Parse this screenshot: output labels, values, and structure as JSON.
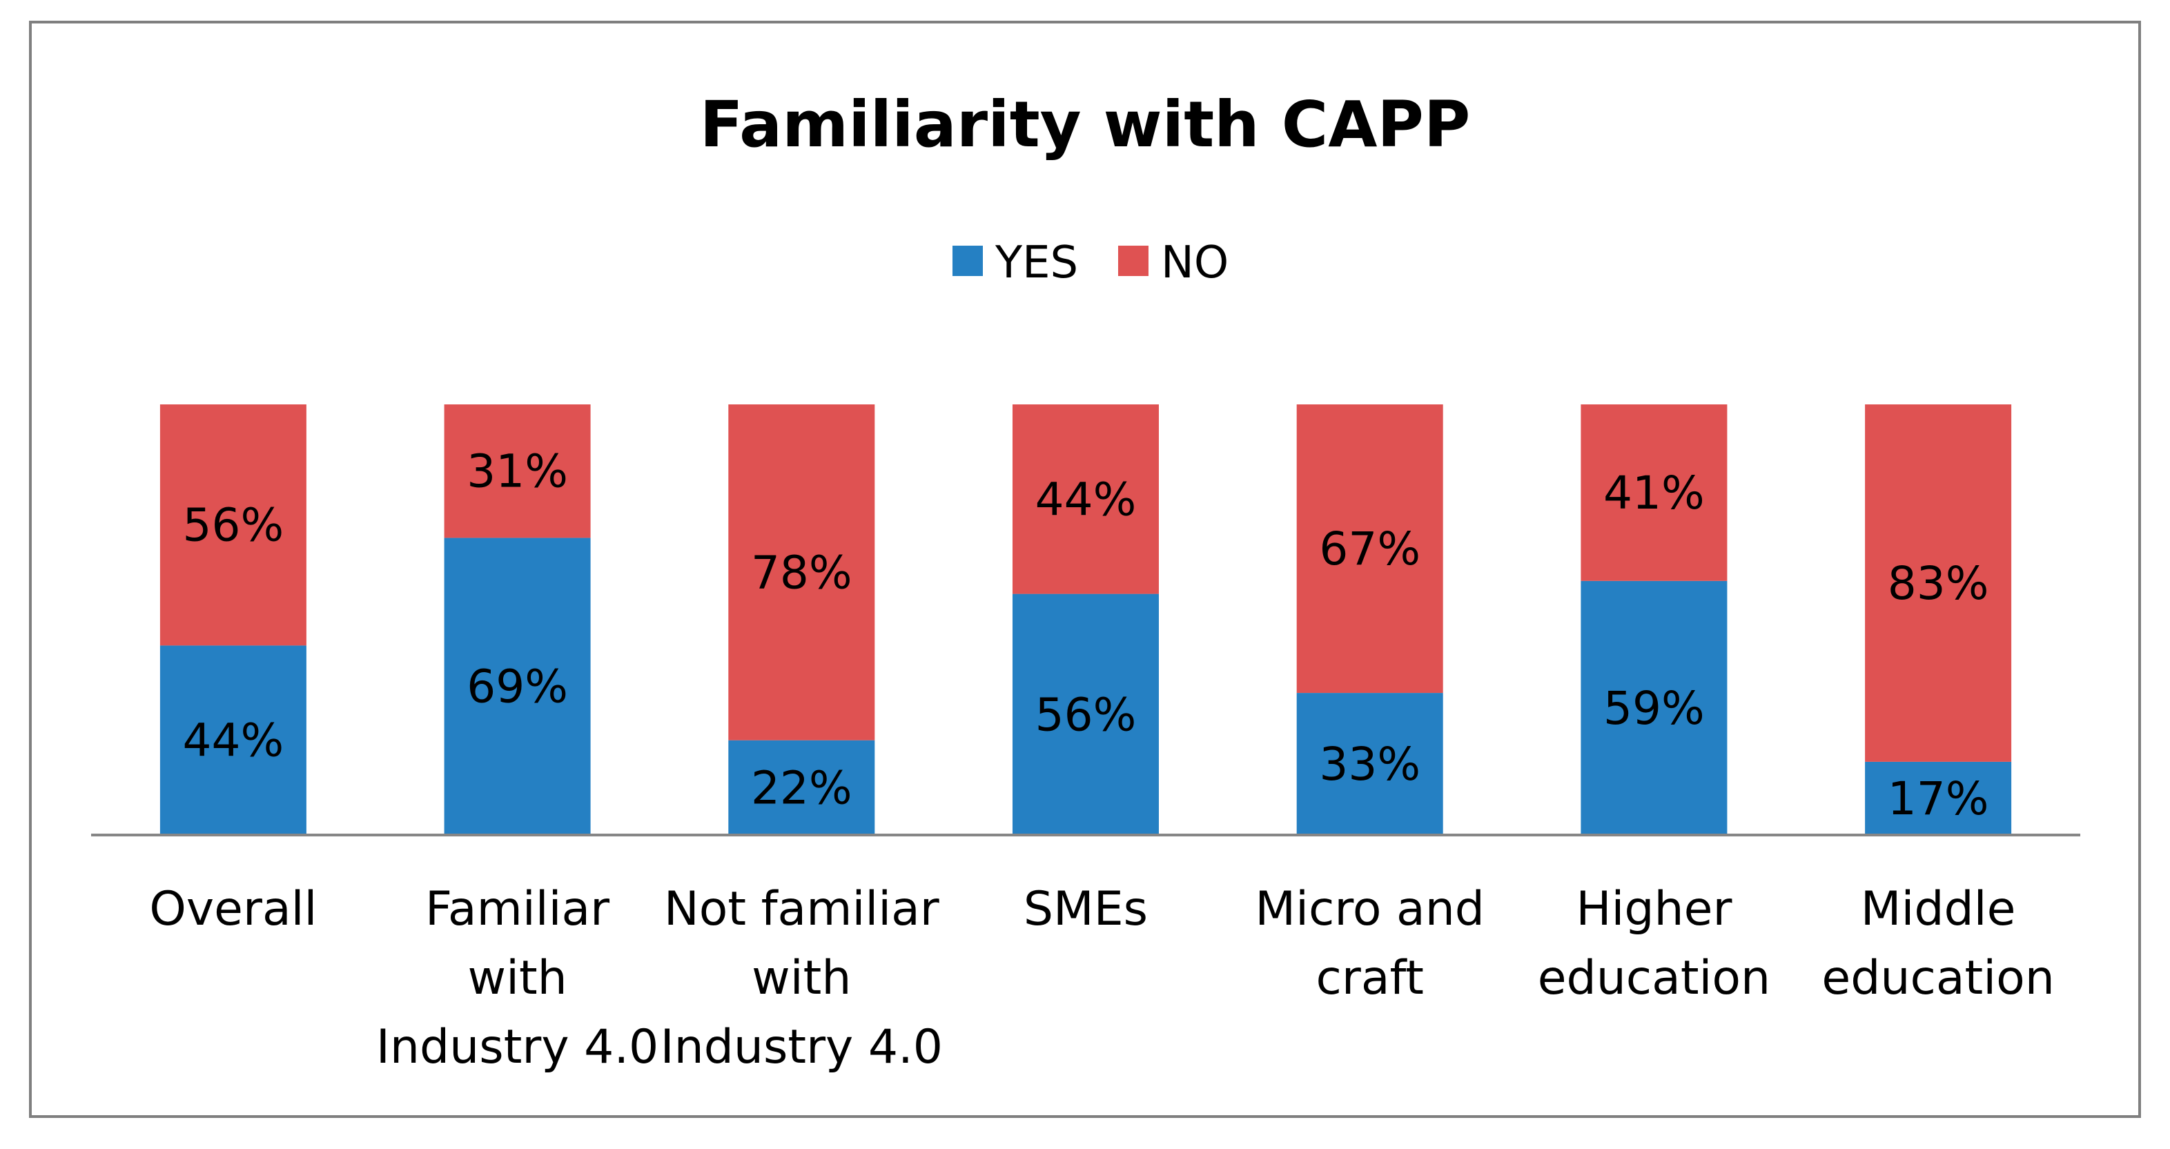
{
  "chart_data": {
    "type": "bar",
    "stacked": true,
    "percent_stacked": true,
    "title": "Familiarity with CAPP",
    "xlabel": "",
    "ylabel": "",
    "ylim": [
      0,
      100
    ],
    "grid": false,
    "legend_position": "top-center",
    "categories": [
      [
        "Overall"
      ],
      [
        "Familiar",
        "with",
        "Industry 4.0"
      ],
      [
        "Not familiar",
        "with",
        "Industry 4.0"
      ],
      [
        "SMEs"
      ],
      [
        "Micro and",
        "craft"
      ],
      [
        "Higher",
        "education"
      ],
      [
        "Middle",
        "education"
      ]
    ],
    "series": [
      {
        "name": "YES",
        "color": "#2580C3",
        "values": [
          44,
          69,
          22,
          56,
          33,
          59,
          17
        ],
        "labels": [
          "44%",
          "69%",
          "22%",
          "56%",
          "33%",
          "59%",
          "17%"
        ]
      },
      {
        "name": "NO",
        "color": "#DF5252",
        "values": [
          56,
          31,
          78,
          44,
          67,
          41,
          83
        ],
        "labels": [
          "56%",
          "31%",
          "78%",
          "44%",
          "67%",
          "41%",
          "83%"
        ]
      }
    ]
  }
}
